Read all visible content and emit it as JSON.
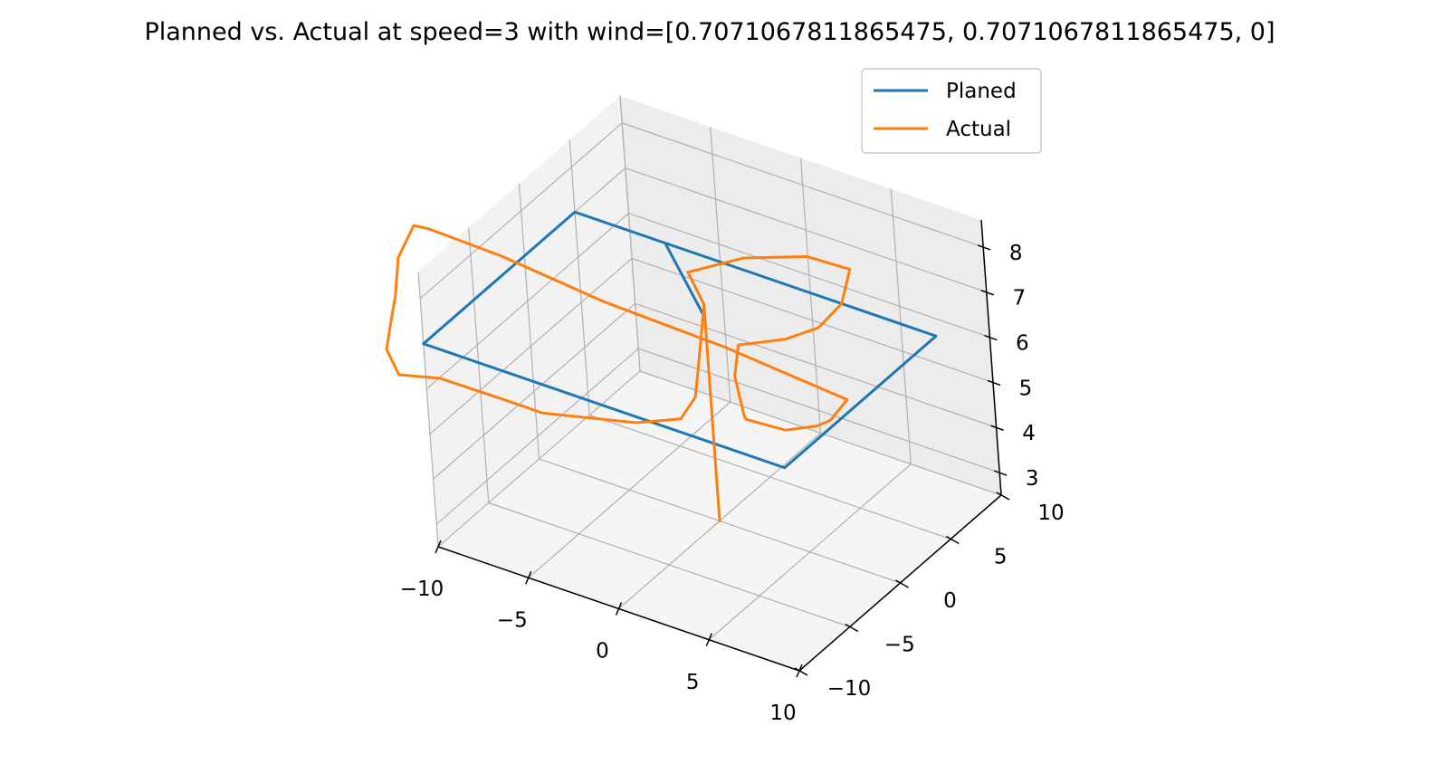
{
  "chart_data": {
    "type": "line3d",
    "title": "Planned vs. Actual at speed=3 with wind=[0.7071067811865475, 0.7071067811865475, 0]",
    "xlabel": "",
    "ylabel": "",
    "zlabel": "",
    "xlim": [
      -10,
      10
    ],
    "ylim": [
      -10,
      10
    ],
    "zlim": [
      2.5,
      8.6
    ],
    "x_ticks": [
      "−10",
      "−5",
      "0",
      "5",
      "10"
    ],
    "y_ticks": [
      "−10",
      "−5",
      "0",
      "5",
      "10"
    ],
    "z_ticks": [
      "3",
      "4",
      "5",
      "6",
      "7",
      "8"
    ],
    "grid": true,
    "legend_position": "top-right",
    "colors": {
      "planned": "#1f77b4",
      "actual": "#ff7f0e",
      "pane": "#f2f2f2",
      "grid": "#b0b0b0"
    },
    "series": [
      {
        "name": "Planed",
        "points": [
          [
            0,
            0,
            7
          ],
          [
            -5,
            5,
            7
          ],
          [
            10,
            5,
            7
          ],
          [
            10,
            -10,
            7
          ],
          [
            -10,
            -10,
            7
          ],
          [
            -10,
            5,
            7
          ],
          [
            -5,
            5,
            7
          ]
        ]
      },
      {
        "name": "Actual",
        "points": [
          [
            0,
            0,
            2.5
          ],
          [
            0,
            0,
            7.3
          ],
          [
            -2,
            2,
            7.35
          ],
          [
            0,
            4,
            7.55
          ],
          [
            3,
            5,
            7.8
          ],
          [
            5.5,
            4.8,
            7.9
          ],
          [
            6.3,
            2.5,
            7.7
          ],
          [
            5.5,
            1.5,
            7.25
          ],
          [
            4.5,
            0,
            7.15
          ],
          [
            3,
            -2,
            7.2
          ],
          [
            4.5,
            -5,
            7.3
          ],
          [
            7,
            -8.5,
            7.45
          ],
          [
            8,
            -10,
            7.8
          ],
          [
            10.5,
            -10.5,
            8.0
          ],
          [
            12,
            -10,
            8.2
          ],
          [
            12.5,
            -9.5,
            8.3
          ],
          [
            12,
            -7,
            8.2
          ],
          [
            5,
            -6.5,
            8.3
          ],
          [
            -2,
            -6,
            8.25
          ],
          [
            -8,
            -5.5,
            8.35
          ],
          [
            -12,
            -5.5,
            8.4
          ],
          [
            -12.5,
            -6,
            8.5
          ],
          [
            -12.3,
            -8,
            8.2
          ],
          [
            -12,
            -9,
            7.6
          ],
          [
            -11.5,
            -10.5,
            7.3
          ],
          [
            -11.2,
            -11.5,
            7.0
          ],
          [
            -10,
            -12.5,
            6.8
          ],
          [
            -8,
            -12,
            6.9
          ],
          [
            -4,
            -12.3,
            7.0
          ],
          [
            -2,
            -12.5,
            7.05
          ],
          [
            2.5,
            -11.2,
            7.2
          ],
          [
            4.3,
            -10,
            7.3
          ],
          [
            4,
            -8,
            7.35
          ],
          [
            2.5,
            -5,
            7.3
          ],
          [
            0,
            0,
            7.3
          ]
        ]
      }
    ]
  }
}
